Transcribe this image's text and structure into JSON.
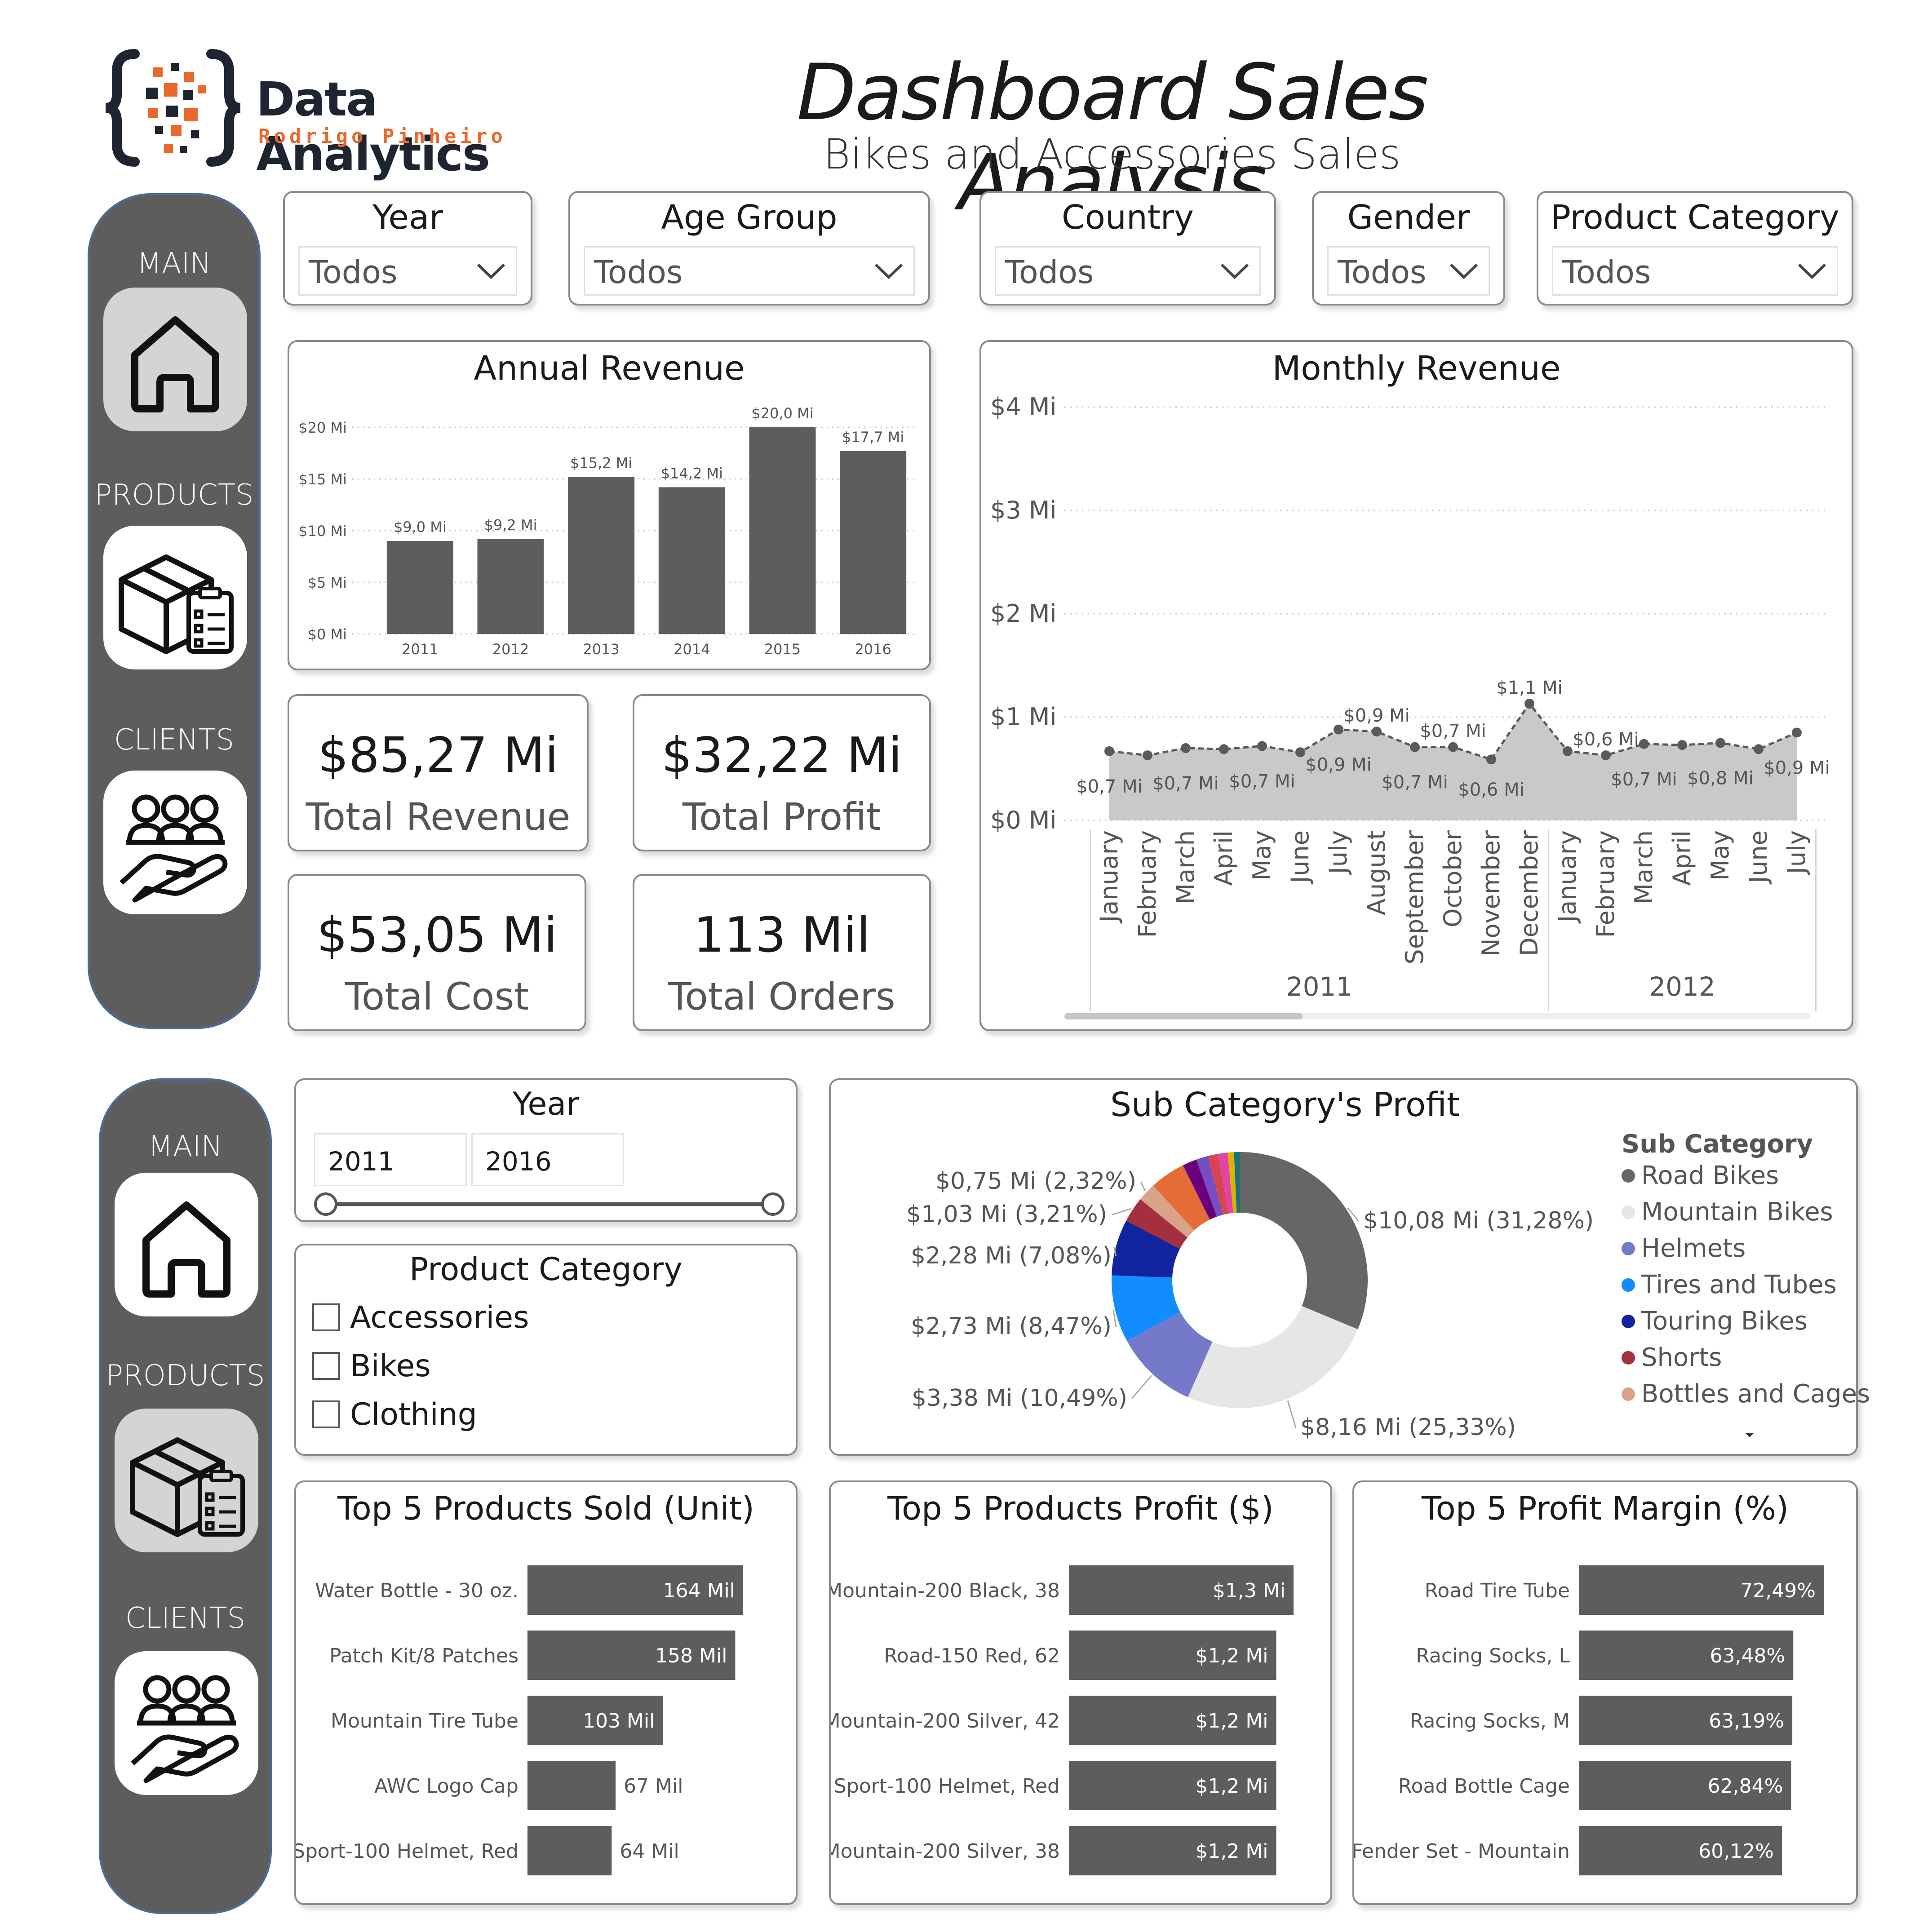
{
  "header": {
    "logo_title": "Data Analytics",
    "logo_subtitle": "Rodrigo Pinheiro",
    "title": "Dashboard Sales Analysis",
    "subtitle": "Bikes and Accessories Sales"
  },
  "nav": {
    "main": "MAIN",
    "products": "PRODUCTS",
    "clients": "CLIENTS"
  },
  "slicers": [
    {
      "title": "Year",
      "value": "Todos"
    },
    {
      "title": "Age Group",
      "value": "Todos"
    },
    {
      "title": "Country",
      "value": "Todos"
    },
    {
      "title": "Gender",
      "value": "Todos"
    },
    {
      "title": "Product Category",
      "value": "Todos"
    }
  ],
  "kpis": [
    {
      "value": "$85,27 Mi",
      "label": "Total Revenue"
    },
    {
      "value": "$32,22 Mi",
      "label": "Total Profit"
    },
    {
      "value": "$53,05 Mi",
      "label": "Total Cost"
    },
    {
      "value": "113 Mil",
      "label": "Total Orders"
    }
  ],
  "year_range": {
    "title": "Year",
    "from": "2011",
    "to": "2016"
  },
  "category_filter": {
    "title": "Product Category",
    "options": [
      "Accessories",
      "Bikes",
      "Clothing"
    ]
  },
  "colors": {
    "bar": "#5f5c5c",
    "area": "#c8c6c4",
    "accent": "#e8692b",
    "nav_bg": "#5f5c5c"
  },
  "chart_data": [
    {
      "id": "annual",
      "type": "bar",
      "title": "Annual Revenue",
      "categories": [
        "2011",
        "2012",
        "2013",
        "2014",
        "2015",
        "2016"
      ],
      "values": [
        9.0,
        9.2,
        15.2,
        14.2,
        20.0,
        17.7
      ],
      "data_labels": [
        "$9,0 Mi",
        "$9,2 Mi",
        "$15,2 Mi",
        "$14,2 Mi",
        "$20,0 Mi",
        "$17,7 Mi"
      ],
      "ylim": [
        0,
        20
      ],
      "yticks": [
        0,
        5,
        10,
        15,
        20
      ],
      "ytick_labels": [
        "$0 Mi",
        "$5 Mi",
        "$10 Mi",
        "$15 Mi",
        "$20 Mi"
      ],
      "grid": true
    },
    {
      "id": "monthly",
      "type": "area",
      "title": "Monthly Revenue",
      "x": [
        "January",
        "February",
        "March",
        "April",
        "May",
        "June",
        "July",
        "August",
        "September",
        "October",
        "November",
        "December",
        "January",
        "February",
        "March",
        "April",
        "May",
        "June",
        "July"
      ],
      "values": [
        0.67,
        0.63,
        0.7,
        0.69,
        0.72,
        0.66,
        0.88,
        0.86,
        0.71,
        0.71,
        0.59,
        1.13,
        0.67,
        0.63,
        0.74,
        0.73,
        0.75,
        0.69,
        0.85
      ],
      "data_labels": [
        "$0,7 Mi",
        "",
        "$0,7 Mi",
        "",
        "$0,7 Mi",
        "",
        "$0,9 Mi",
        "$0,9 Mi",
        "$0,7 Mi",
        "$0,7 Mi",
        "$0,6 Mi",
        "$1,1 Mi",
        "",
        "$0,6 Mi",
        "$0,7 Mi",
        "",
        "$0,8 Mi",
        "",
        "$0,9 Mi"
      ],
      "year_groups": [
        {
          "label": "2011",
          "start": 0,
          "end": 11
        },
        {
          "label": "2012",
          "start": 12,
          "end": 18
        }
      ],
      "ylim": [
        0,
        4
      ],
      "yticks": [
        0,
        1,
        2,
        3,
        4
      ],
      "ytick_labels": [
        "$0 Mi",
        "$1 Mi",
        "$2 Mi",
        "$3 Mi",
        "$4 Mi"
      ],
      "grid": true
    },
    {
      "id": "subcat",
      "type": "pie",
      "title": "Sub Category's Profit",
      "legend_title": "Sub Category",
      "legend_position": "right",
      "slices": [
        {
          "name": "Road Bikes",
          "value": 31.28,
          "label": "$10,08 Mi (31,28%)",
          "color": "#666666"
        },
        {
          "name": "Mountain Bikes",
          "value": 25.33,
          "label": "$8,16 Mi (25,33%)",
          "color": "#e6e6e6"
        },
        {
          "name": "Helmets",
          "value": 10.49,
          "label": "$3,38 Mi (10,49%)",
          "color": "#7479c9"
        },
        {
          "name": "Tires and Tubes",
          "value": 8.47,
          "label": "$2,73 Mi (8,47%)",
          "color": "#118dff"
        },
        {
          "name": "Touring Bikes",
          "value": 7.08,
          "label": "$2,28 Mi (7,08%)",
          "color": "#12239e"
        },
        {
          "name": "Shorts",
          "value": 3.21,
          "label": "$1,03 Mi (3,21%)",
          "color": "#a4303f"
        },
        {
          "name": "Bottles and Cages",
          "value": 2.32,
          "label": "$0,75 Mi (2,32%)",
          "color": "#d9a388"
        },
        {
          "name": "",
          "value": 4.5,
          "label": "",
          "color": "#e66c37"
        },
        {
          "name": "",
          "value": 1.8,
          "label": "",
          "color": "#6b007b"
        },
        {
          "name": "",
          "value": 1.5,
          "label": "",
          "color": "#744ec2"
        },
        {
          "name": "",
          "value": 1.3,
          "label": "",
          "color": "#d64550"
        },
        {
          "name": "",
          "value": 1.2,
          "label": "",
          "color": "#e044a7"
        },
        {
          "name": "",
          "value": 0.8,
          "label": "",
          "color": "#d9b300"
        },
        {
          "name": "",
          "value": 0.7,
          "label": "",
          "color": "#197278"
        }
      ]
    },
    {
      "id": "top_units",
      "type": "bar",
      "orientation": "horizontal",
      "title": "Top 5 Products Sold (Unit)",
      "categories": [
        "Water Bottle - 30 oz.",
        "Patch Kit/8 Patches",
        "Mountain Tire Tube",
        "AWC Logo Cap",
        "Sport-100 Helmet, Red"
      ],
      "values": [
        164,
        158,
        103,
        67,
        64
      ],
      "data_labels": [
        "164 Mil",
        "158 Mil",
        "103 Mil",
        "67 Mil",
        "64 Mil"
      ],
      "xlim": [
        0,
        164
      ]
    },
    {
      "id": "top_profit",
      "type": "bar",
      "orientation": "horizontal",
      "title": "Top 5 Products Profit ($)",
      "categories": [
        "Mountain-200 Black, 38",
        "Road-150 Red, 62",
        "Mountain-200 Silver, 42",
        "Sport-100 Helmet, Red",
        "Mountain-200 Silver, 38"
      ],
      "values": [
        1.3,
        1.2,
        1.2,
        1.2,
        1.2
      ],
      "data_labels": [
        "$1,3 Mi",
        "$1,2 Mi",
        "$1,2 Mi",
        "$1,2 Mi",
        "$1,2 Mi"
      ],
      "xlim": [
        0,
        1.3
      ]
    },
    {
      "id": "top_margin",
      "type": "bar",
      "orientation": "horizontal",
      "title": "Top 5 Profit Margin (%)",
      "categories": [
        "Road Tire Tube",
        "Racing Socks, L",
        "Racing Socks, M",
        "Road Bottle Cage",
        "Fender Set - Mountain"
      ],
      "values": [
        72.49,
        63.48,
        63.19,
        62.84,
        60.12
      ],
      "data_labels": [
        "72,49%",
        "63,48%",
        "63,19%",
        "62,84%",
        "60,12%"
      ],
      "xlim": [
        0,
        72.49
      ]
    }
  ]
}
